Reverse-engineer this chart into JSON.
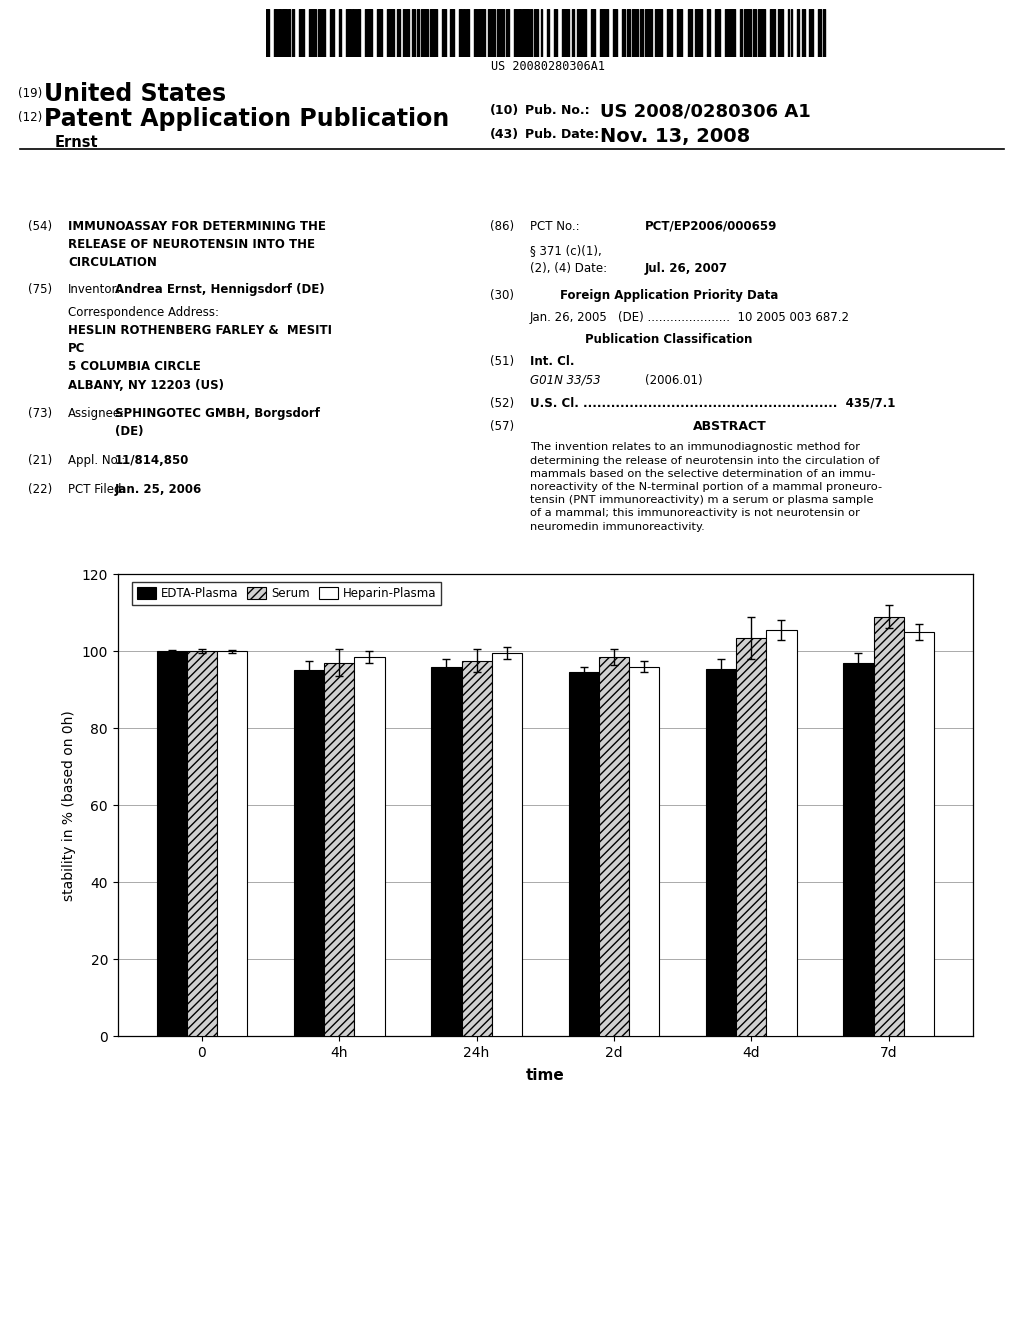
{
  "categories": [
    "0",
    "4h",
    "24h",
    "2d",
    "4d",
    "7d"
  ],
  "edta_values": [
    100.0,
    95.0,
    96.0,
    94.5,
    95.5,
    97.0
  ],
  "edta_errors": [
    0.4,
    2.5,
    2.0,
    1.5,
    2.5,
    2.5
  ],
  "serum_values": [
    100.0,
    97.0,
    97.5,
    98.5,
    103.5,
    109.0
  ],
  "serum_errors": [
    0.5,
    3.5,
    3.0,
    2.0,
    5.5,
    3.0
  ],
  "heparin_values": [
    100.0,
    98.5,
    99.5,
    96.0,
    105.5,
    105.0
  ],
  "heparin_errors": [
    0.4,
    1.5,
    1.5,
    1.5,
    2.5,
    2.0
  ],
  "ylabel": "stability in % (based on 0h)",
  "xlabel": "time",
  "ylim": [
    0,
    120
  ],
  "yticks": [
    0,
    20,
    40,
    60,
    80,
    100,
    120
  ],
  "bar_width": 0.22,
  "figure_bg": "#ffffff",
  "grid_color": "#aaaaaa",
  "legend_labels": [
    "EDTA-Plasma",
    "Serum",
    "Heparin-Plasma"
  ],
  "barcode_text": "US 20080280306A1"
}
